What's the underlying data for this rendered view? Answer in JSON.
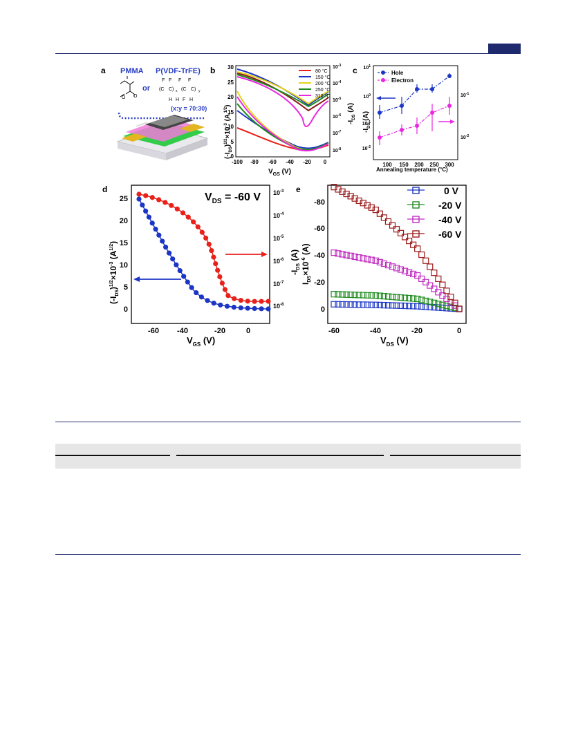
{
  "page": {
    "accent": "#1f2a6e"
  },
  "panel_a": {
    "letter": "a",
    "pmma": "PMMA",
    "pvdf": "P(VDF-TrFE)",
    "or": "or",
    "ratio": "(x:y = 70:30)"
  },
  "panel_b": {
    "letter": "b",
    "xlabel_main": "V",
    "xlabel_sub": "GS",
    "xlabel_unit": " (V)",
    "ylabel_left": "(-I_DS)^1/2 ×10^-3 (A^1/2)",
    "ylabel_right": "-I_DS (A)",
    "xticks": [
      "-100",
      "-80",
      "-60",
      "-40",
      "-20",
      "0"
    ],
    "yticks_left": [
      "0",
      "5",
      "10",
      "15",
      "20",
      "25",
      "30"
    ],
    "yticks_right": [
      "10^-8",
      "10^-7",
      "10^-6",
      "10^-5",
      "10^-4",
      "10^-3"
    ],
    "legend": [
      {
        "label": "80 °C",
        "color": "#e8211b"
      },
      {
        "label": "150 °C",
        "color": "#1b35c4"
      },
      {
        "label": "200 °C",
        "color": "#e6d21a"
      },
      {
        "label": "250 °C",
        "color": "#1e8a1e"
      },
      {
        "label": "310 °C",
        "color": "#e828e0"
      }
    ]
  },
  "panel_c": {
    "letter": "c",
    "xlabel": "Annealing temperature (°C)",
    "ylabel_right": "-I_DS (A)",
    "xticks": [
      "100",
      "150",
      "200",
      "250",
      "300"
    ],
    "yticks_left": [
      "10^-2",
      "10^-1",
      "10^0",
      "10^1"
    ],
    "yticks_right": [
      "10^-2",
      "10^-1"
    ],
    "legend": [
      {
        "label": "Hole",
        "color": "#1b35c4"
      },
      {
        "label": "Electron",
        "color": "#e828e0"
      }
    ]
  },
  "panel_d": {
    "letter": "d",
    "annotation": "V_DS = -60 V",
    "xlabel": "V_GS (V)",
    "ylabel_left": "(-I_DS)^1/2 ×10^-3 (A^1/2)",
    "ylabel_right": "-I_DS (A)",
    "xticks": [
      "-60",
      "-40",
      "-20",
      "0"
    ],
    "yticks_left": [
      "0",
      "5",
      "10",
      "15",
      "20",
      "25"
    ],
    "yticks_right": [
      "10^-8",
      "10^-7",
      "10^-6",
      "10^-5",
      "10^-4",
      "10^-3"
    ]
  },
  "panel_e": {
    "letter": "e",
    "xlabel": "V_DS (V)",
    "ylabel": "I_DS ×10^-6 (A)",
    "xticks": [
      "-60",
      "-40",
      "-20",
      "0"
    ],
    "yticks": [
      "0",
      "-20",
      "-40",
      "-60",
      "-80"
    ],
    "legend": [
      {
        "label": "0 V",
        "color": "#1b35c4"
      },
      {
        "label": "-20 V",
        "color": "#1e8a1e"
      },
      {
        "label": "-40 V",
        "color": "#c02cc0"
      },
      {
        "label": "-60 V",
        "color": "#9c1b1b"
      }
    ]
  },
  "chart_data": [
    {
      "type": "scatter",
      "title": "",
      "panel": "c",
      "xlabel": "Annealing temperature (°C)",
      "series": [
        {
          "name": "Hole",
          "x": [
            80,
            150,
            200,
            250,
            310
          ],
          "y": [
            0.2,
            0.4,
            1.8,
            1.8,
            5.0
          ],
          "axis": "left"
        },
        {
          "name": "Electron",
          "x": [
            80,
            150,
            200,
            250,
            310
          ],
          "y": [
            0.028,
            0.04,
            0.05,
            0.1,
            0.12
          ],
          "axis": "right"
        }
      ]
    },
    {
      "type": "line",
      "panel": "e",
      "xlabel": "V_DS (V)",
      "ylabel": "I_DS ×10^-6 (A)",
      "xlim": [
        -60,
        0
      ],
      "ylim": [
        0,
        -95
      ],
      "series": [
        {
          "name": "0 V",
          "x": [
            -60,
            -40,
            -20,
            0
          ],
          "y": [
            -3.5,
            -3,
            -2,
            0
          ]
        },
        {
          "name": "-20 V",
          "x": [
            -60,
            -40,
            -20,
            0
          ],
          "y": [
            -11,
            -10,
            -7.5,
            0
          ]
        },
        {
          "name": "-40 V",
          "x": [
            -60,
            -40,
            -20,
            0
          ],
          "y": [
            -42,
            -36,
            -25,
            0
          ]
        },
        {
          "name": "-60 V",
          "x": [
            -60,
            -40,
            -20,
            0
          ],
          "y": [
            -91,
            -74,
            -45,
            0
          ]
        }
      ]
    },
    {
      "type": "line",
      "panel": "d",
      "xlabel": "V_GS (V)",
      "xlim": [
        -72,
        14
      ],
      "series": [
        {
          "name": "sqrt",
          "axis": "left",
          "x": [
            -70,
            -60,
            -50,
            -40,
            -30,
            -20,
            -10,
            0,
            12
          ],
          "y": [
            25,
            17,
            11,
            6,
            2.5,
            0.8,
            0.3,
            0.2,
            0.2
          ]
        },
        {
          "name": "log",
          "axis": "right",
          "x": [
            -70,
            -60,
            -50,
            -40,
            -30,
            -20,
            -15,
            -10,
            0,
            12
          ],
          "y": [
            -3,
            -3.3,
            -3.6,
            -4,
            -4.6,
            -5.8,
            -7,
            -7.6,
            -7.8,
            -7.85
          ]
        }
      ]
    }
  ]
}
